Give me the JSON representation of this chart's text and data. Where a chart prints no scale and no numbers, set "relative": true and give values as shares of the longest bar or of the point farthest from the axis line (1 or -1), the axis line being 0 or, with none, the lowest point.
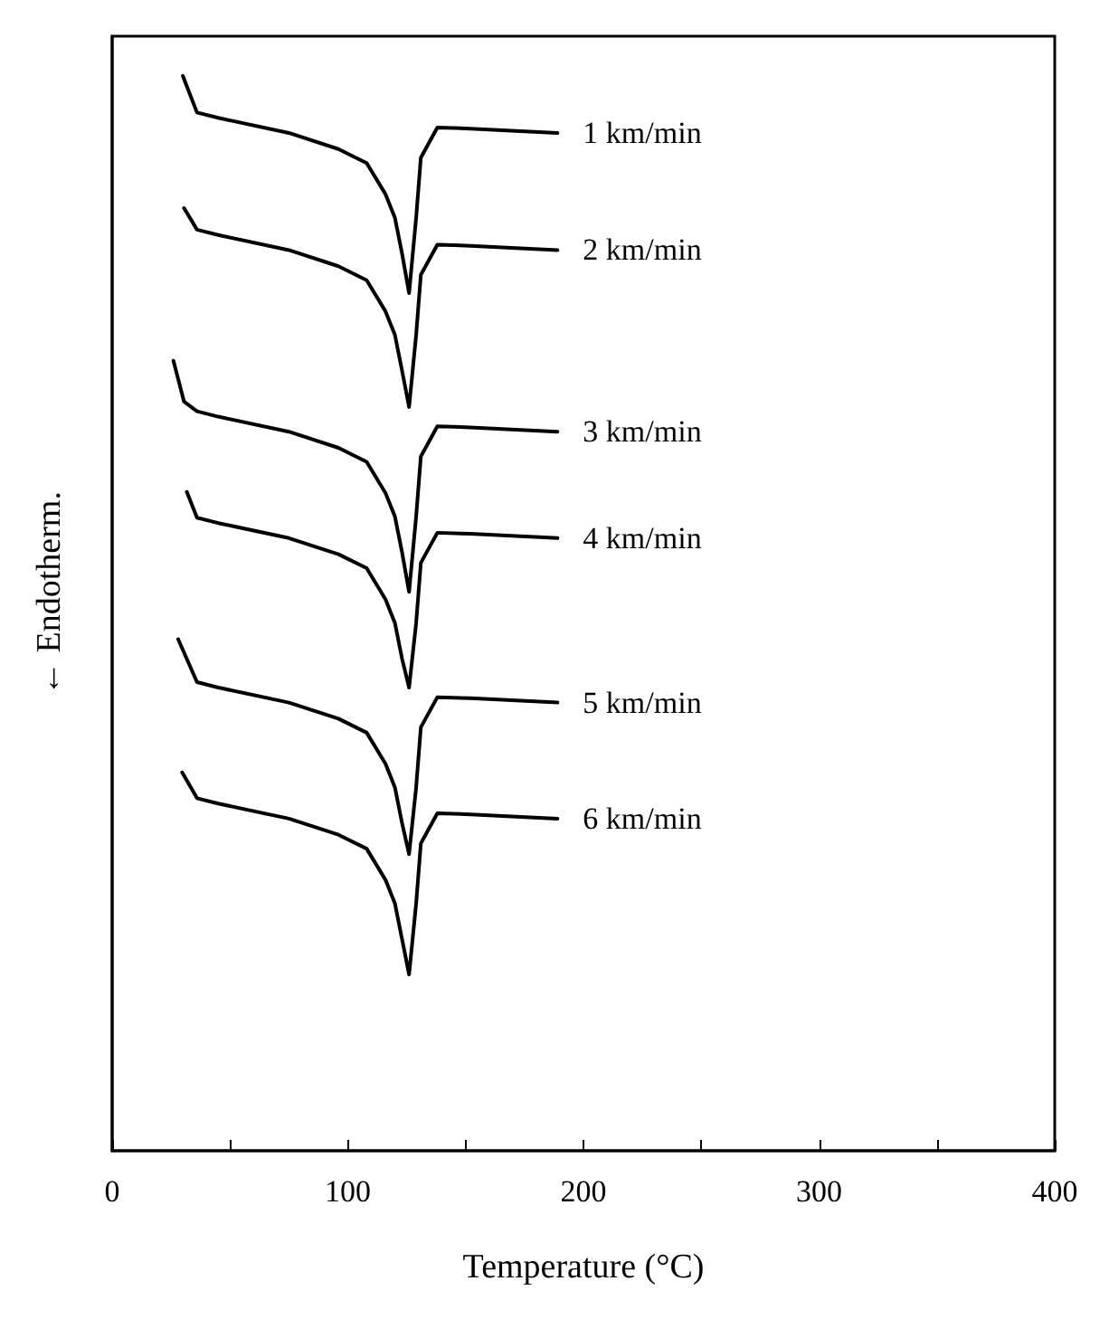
{
  "chart_data": {
    "type": "line",
    "relative": true,
    "xlabel": "Temperature (°C)",
    "ylabel": "← Endotherm.",
    "xlim": [
      0,
      400
    ],
    "xticks": [
      0,
      {
        "value": 50,
        "label": null
      },
      100,
      {
        "value": 150,
        "label": null
      },
      200,
      {
        "value": 250,
        "label": null
      },
      300,
      {
        "value": 350,
        "label": null
      },
      400
    ],
    "tick_labels": "x",
    "series": [
      {
        "name": "1 km/min",
        "color": "#000000",
        "x": [
          30,
          36,
          45,
          75,
          96,
          108,
          116,
          120,
          123,
          126,
          129,
          131,
          138,
          152,
          189
        ],
        "values": [
          1.0,
          0.966,
          0.961,
          0.947,
          0.932,
          0.919,
          0.89,
          0.868,
          0.835,
          0.798,
          0.868,
          0.924,
          0.952,
          0.951,
          0.947
        ]
      },
      {
        "name": "2 km/min",
        "color": "#000000",
        "x": [
          30.5,
          36,
          45,
          75,
          96,
          108,
          116,
          120,
          123,
          126,
          129,
          131,
          138,
          152,
          189
        ],
        "values": [
          0.877,
          0.857,
          0.852,
          0.838,
          0.823,
          0.81,
          0.781,
          0.759,
          0.726,
          0.692,
          0.759,
          0.815,
          0.843,
          0.842,
          0.838
        ]
      },
      {
        "name": "3 km/min",
        "color": "#000000",
        "x": [
          26,
          30.5,
          36,
          45,
          75,
          96,
          108,
          116,
          120,
          123,
          126,
          129,
          131,
          138,
          152,
          189
        ],
        "values": [
          0.735,
          0.697,
          0.688,
          0.683,
          0.669,
          0.654,
          0.641,
          0.612,
          0.59,
          0.557,
          0.52,
          0.59,
          0.646,
          0.674,
          0.673,
          0.669
        ]
      },
      {
        "name": "4 km/min",
        "color": "#000000",
        "x": [
          31.7,
          36,
          45,
          75,
          96,
          108,
          116,
          120,
          123,
          126,
          129,
          131,
          138,
          152,
          189
        ],
        "values": [
          0.613,
          0.589,
          0.584,
          0.57,
          0.555,
          0.542,
          0.513,
          0.491,
          0.458,
          0.431,
          0.491,
          0.547,
          0.575,
          0.574,
          0.57
        ]
      },
      {
        "name": "5 km/min",
        "color": "#000000",
        "x": [
          28,
          36,
          45,
          75,
          96,
          108,
          116,
          120,
          123,
          126,
          129,
          131,
          138,
          152,
          189
        ],
        "values": [
          0.476,
          0.436,
          0.431,
          0.417,
          0.402,
          0.389,
          0.36,
          0.338,
          0.305,
          0.276,
          0.338,
          0.394,
          0.422,
          0.421,
          0.417
        ]
      },
      {
        "name": "6 km/min",
        "color": "#000000",
        "x": [
          29.7,
          36,
          45,
          75,
          96,
          108,
          116,
          120,
          123,
          126,
          129,
          131,
          138,
          152,
          189
        ],
        "values": [
          0.352,
          0.328,
          0.323,
          0.309,
          0.294,
          0.281,
          0.252,
          0.23,
          0.197,
          0.164,
          0.23,
          0.286,
          0.314,
          0.313,
          0.309
        ]
      }
    ]
  }
}
